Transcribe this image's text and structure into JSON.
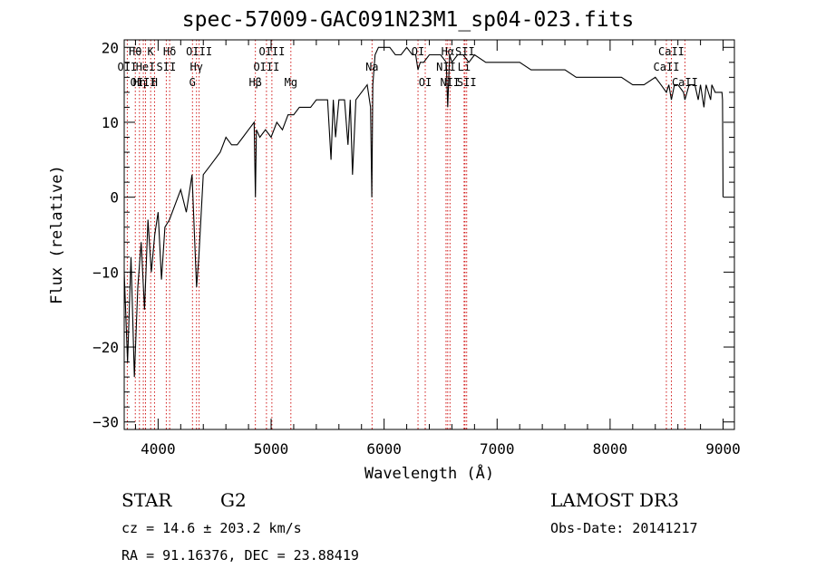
{
  "chart_data": {
    "type": "line",
    "title": "spec-57009-GAC091N23M1_sp04-023.fits",
    "xlabel": "Wavelength (Å)",
    "ylabel": "Flux (relative)",
    "xlim": [
      3700,
      9100
    ],
    "ylim": [
      -31,
      21
    ],
    "xticks": [
      4000,
      5000,
      6000,
      7000,
      8000,
      9000
    ],
    "yticks": [
      -30,
      -20,
      -10,
      0,
      10,
      20
    ],
    "xtick_labels": [
      "4000",
      "5000",
      "6000",
      "7000",
      "8000",
      "9000"
    ],
    "ytick_labels": [
      "−30",
      "−20",
      "−10",
      "0",
      "10",
      "20"
    ],
    "grid": false,
    "series": [
      {
        "name": "flux",
        "color": "#000000",
        "x": [
          3700,
          3730,
          3760,
          3790,
          3820,
          3850,
          3880,
          3910,
          3940,
          3970,
          4000,
          4030,
          4060,
          4100,
          4150,
          4200,
          4250,
          4300,
          4340,
          4360,
          4400,
          4450,
          4500,
          4550,
          4600,
          4650,
          4700,
          4750,
          4800,
          4850,
          4861,
          4870,
          4900,
          4950,
          5000,
          5050,
          5100,
          5150,
          5200,
          5250,
          5300,
          5350,
          5400,
          5450,
          5500,
          5530,
          5550,
          5570,
          5600,
          5650,
          5680,
          5700,
          5720,
          5750,
          5800,
          5850,
          5880,
          5891,
          5900,
          5920,
          5950,
          6000,
          6050,
          6100,
          6150,
          6200,
          6250,
          6280,
          6300,
          6320,
          6350,
          6400,
          6450,
          6500,
          6550,
          6563,
          6580,
          6600,
          6650,
          6700,
          6750,
          6800,
          6900,
          7000,
          7100,
          7200,
          7300,
          7400,
          7500,
          7600,
          7700,
          7800,
          7900,
          8000,
          8100,
          8200,
          8300,
          8400,
          8450,
          8498,
          8520,
          8542,
          8570,
          8600,
          8650,
          8662,
          8700,
          8750,
          8780,
          8800,
          8830,
          8850,
          8870,
          8890,
          8900,
          8930,
          8960,
          8990,
          8995,
          9000
        ],
        "values": [
          -10,
          -22,
          -8,
          -24,
          -12,
          -6,
          -15,
          -3,
          -10,
          -5,
          -2,
          -11,
          -4,
          -3,
          -1,
          1,
          -2,
          3,
          -12,
          -8,
          3,
          4,
          5,
          6,
          8,
          7,
          7,
          8,
          9,
          10,
          0,
          9,
          8,
          9,
          8,
          10,
          9,
          11,
          11,
          12,
          12,
          12,
          13,
          13,
          13,
          5,
          13,
          8,
          13,
          13,
          7,
          13,
          3,
          13,
          14,
          15,
          12,
          0,
          15,
          19,
          20,
          20,
          20,
          19,
          19,
          20,
          19,
          19,
          17,
          18,
          18,
          19,
          19,
          19,
          18,
          12,
          19,
          18,
          19,
          19,
          18,
          19,
          18,
          18,
          18,
          18,
          17,
          17,
          17,
          17,
          16,
          16,
          16,
          16,
          16,
          15,
          15,
          16,
          15,
          14,
          15,
          13,
          15,
          15,
          14,
          13,
          15,
          15,
          13,
          15,
          12,
          15,
          14,
          13,
          15,
          14,
          14,
          14,
          13,
          0
        ]
      }
    ],
    "lines": [
      {
        "label": "Hθ",
        "wavelength": 3798,
        "row": 0
      },
      {
        "label": "K",
        "wavelength": 3934,
        "row": 0
      },
      {
        "label": "Hδ",
        "wavelength": 4102,
        "row": 0
      },
      {
        "label": "OIII",
        "wavelength": 4363,
        "row": 0
      },
      {
        "label": "OIII",
        "wavelength": 5007,
        "row": 0
      },
      {
        "label": "OI",
        "wavelength": 6300,
        "row": 0
      },
      {
        "label": "Hα",
        "wavelength": 6563,
        "row": 0
      },
      {
        "label": "SII",
        "wavelength": 6716,
        "row": 0
      },
      {
        "label": "CaII",
        "wavelength": 8542,
        "row": 0
      },
      {
        "label": "OII",
        "wavelength": 3727,
        "row": 1
      },
      {
        "label": "HeI",
        "wavelength": 3889,
        "row": 1
      },
      {
        "label": "SII",
        "wavelength": 4072,
        "row": 1
      },
      {
        "label": "Hγ",
        "wavelength": 4340,
        "row": 1
      },
      {
        "label": "OIII",
        "wavelength": 4959,
        "row": 1
      },
      {
        "label": "Na",
        "wavelength": 5893,
        "row": 1
      },
      {
        "label": "NII",
        "wavelength": 6548,
        "row": 1
      },
      {
        "label": "Li",
        "wavelength": 6708,
        "row": 1
      },
      {
        "label": "CaII",
        "wavelength": 8498,
        "row": 1
      },
      {
        "label": "OIII",
        "wavelength": 3869,
        "row": 2
      },
      {
        "label": "Hη",
        "wavelength": 3835,
        "row": 2
      },
      {
        "label": "H",
        "wavelength": 3968,
        "row": 2
      },
      {
        "label": "G",
        "wavelength": 4304,
        "row": 2
      },
      {
        "label": "Hβ",
        "wavelength": 4861,
        "row": 2
      },
      {
        "label": "Mg",
        "wavelength": 5175,
        "row": 2
      },
      {
        "label": "OI",
        "wavelength": 6364,
        "row": 2
      },
      {
        "label": "NII",
        "wavelength": 6583,
        "row": 2
      },
      {
        "label": "SII",
        "wavelength": 6731,
        "row": 2
      },
      {
        "label": "CaII",
        "wavelength": 8662,
        "row": 2
      }
    ]
  },
  "info": {
    "object_class": "STAR",
    "subclass": "G2",
    "survey": "LAMOST DR3",
    "cz": "cz =  14.6 ± 203.2 km/s",
    "obs_date": "Obs-Date: 20141217",
    "coords": "RA =  91.16376, DEC =  23.88419"
  },
  "colors": {
    "line_marker": "#cc0000",
    "spectrum": "#000000"
  }
}
